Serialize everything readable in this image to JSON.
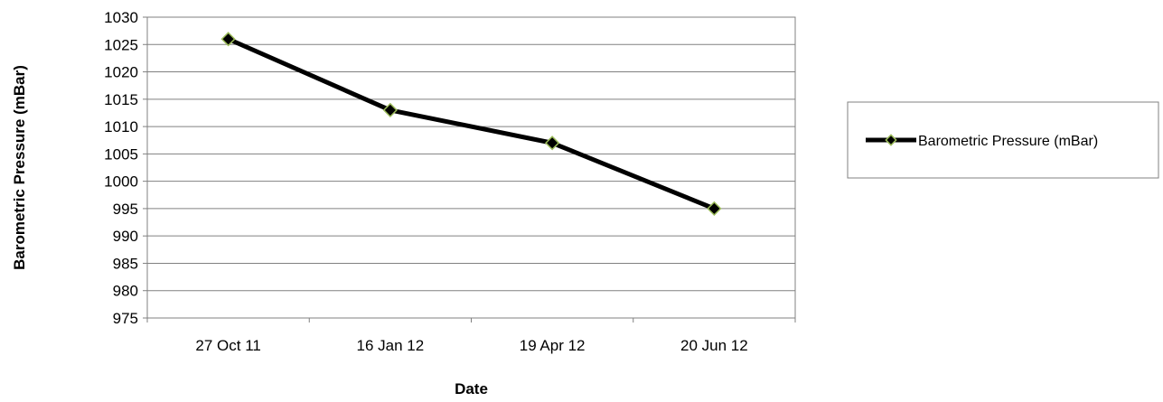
{
  "chart_data": {
    "type": "line",
    "xlabel": "Date",
    "ylabel": "Barometric Pressure (mBar)",
    "categories": [
      "27 Oct 11",
      "16 Jan 12",
      "19 Apr 12",
      "20 Jun 12"
    ],
    "series": [
      {
        "name": "Barometric Pressure (mBar)",
        "values": [
          1026,
          1013,
          1007,
          995
        ]
      }
    ],
    "ylim": [
      975,
      1030
    ],
    "ytick_step": 5,
    "yticks": [
      "975",
      "980",
      "985",
      "990",
      "995",
      "1000",
      "1005",
      "1010",
      "1015",
      "1020",
      "1025",
      "1030"
    ],
    "grid": true,
    "legend": "right",
    "colors": {
      "line": "#000000",
      "marker_fill": "#000000",
      "marker_edge": "#9bbb59",
      "grid": "#808080",
      "axis": "#808080"
    }
  }
}
